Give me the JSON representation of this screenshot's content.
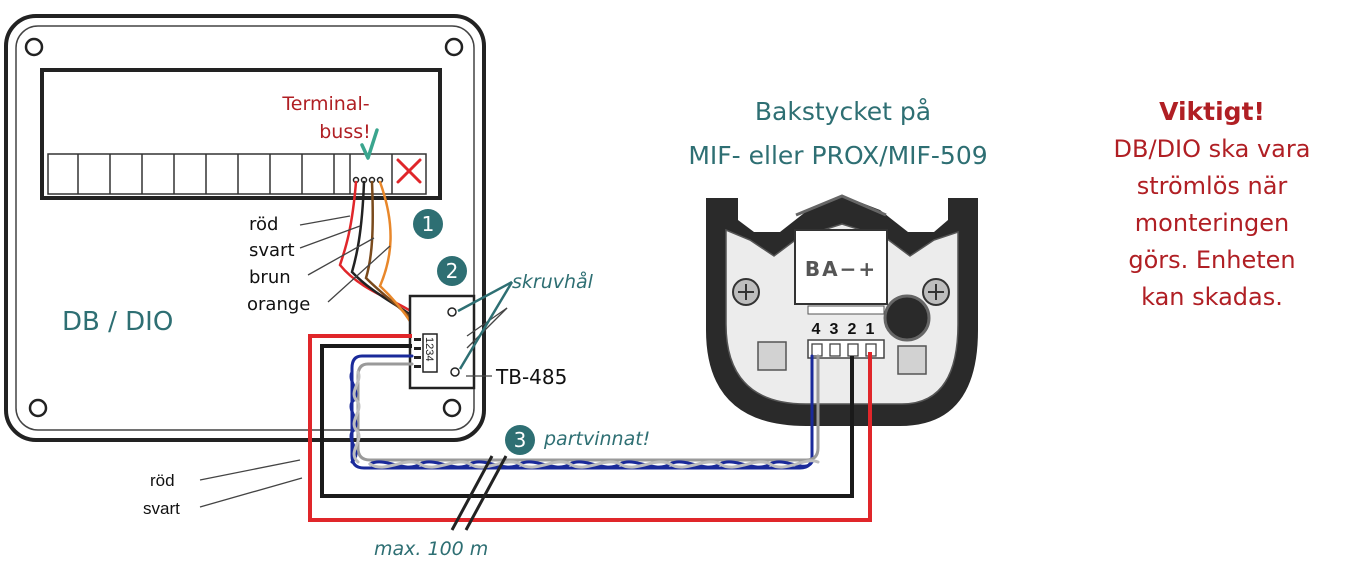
{
  "panel": {
    "terminal_note_1": "Terminal-",
    "terminal_note_2": "buss!",
    "device_label": "DB / DIO",
    "wire_colors": [
      "röd",
      "svart",
      "brun",
      "orange"
    ],
    "step_1": "1",
    "step_2": "2",
    "screw_holes": "skruvhål",
    "tb_label": "TB-485",
    "tb_pins": "1234"
  },
  "cable": {
    "step_3": "3",
    "twisted_note": "partvinnat!",
    "power_red": "röd",
    "power_black": "svart",
    "max_length": "max. 100 m"
  },
  "reader": {
    "title_line_1": "Bakstycket på",
    "title_line_2": "MIF- eller PROX/MIF-509",
    "terminal_marks": "BA−+",
    "pins": [
      "4",
      "3",
      "2",
      "1"
    ]
  },
  "warning": {
    "heading": "Viktigt!",
    "lines": [
      "DB/DIO ska vara",
      "strömlös när",
      "monteringen",
      "görs. Enheten",
      "kan skadas."
    ]
  },
  "colors": {
    "teal": "#2e6f73",
    "red": "#e0262a",
    "dark_red": "#b01f24",
    "blue": "#1a2a9a",
    "green_check": "#3aa58e"
  }
}
